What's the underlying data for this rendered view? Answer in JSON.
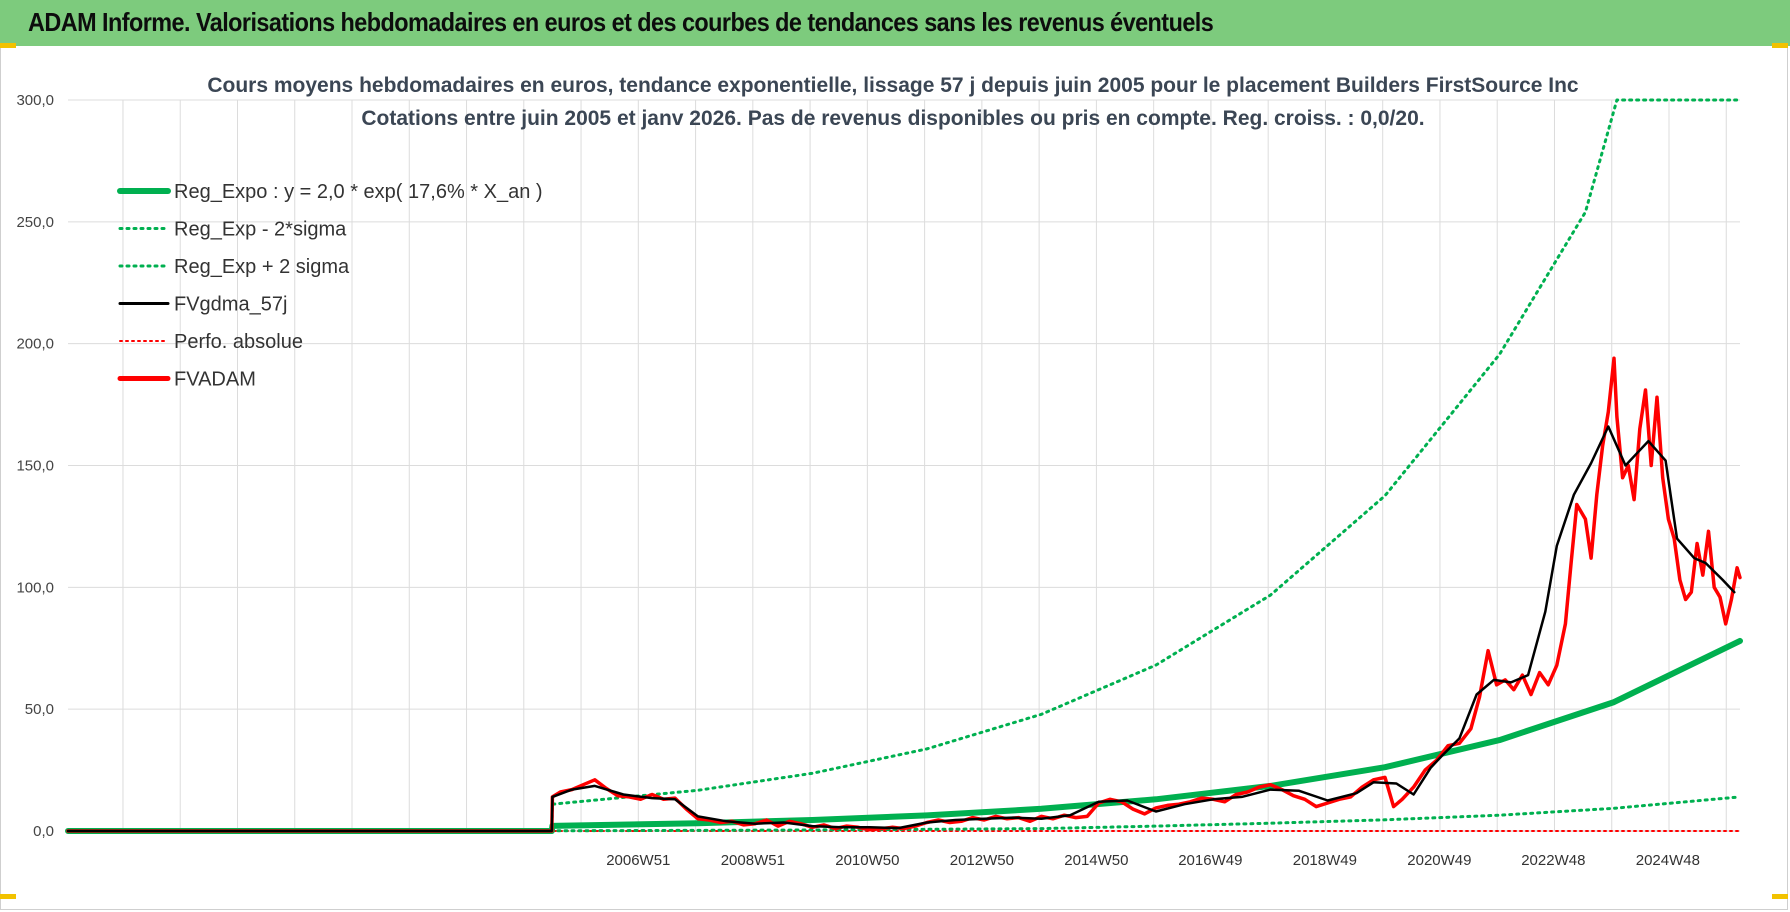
{
  "header": {
    "title": "ADAM Informe. Valorisations hebdomadaires en euros et des courbes de tendances sans les revenus éventuels",
    "bar_color": "#7dcb7d"
  },
  "chart_data": {
    "type": "line",
    "title": "Cours moyens hebdomadaires en euros, tendance exponentielle, lissage 57 j depuis juin 2005 pour le placement Builders FirstSource Inc",
    "subtitle": "Cotations entre juin 2005 et janv 2026.  Pas de revenus disponibles ou pris en compte. Reg. croiss. : 0,0/20.",
    "xlabel": "",
    "ylabel": "",
    "ylim": [
      0,
      300
    ],
    "xlim": [
      1997.0,
      2026.2
    ],
    "grid": true,
    "y_ticks": [
      "0,0",
      "50,0",
      "100,0",
      "150,0",
      "200,0",
      "250,0",
      "300,0"
    ],
    "y_tick_values": [
      0,
      50,
      100,
      150,
      200,
      250,
      300
    ],
    "x_ticks": [
      "2006W51",
      "2008W51",
      "2010W50",
      "2012W50",
      "2014W50",
      "2016W49",
      "2018W49",
      "2020W49",
      "2022W48",
      "2024W48"
    ],
    "x_tick_values": [
      2006.96,
      2008.96,
      2010.96,
      2012.96,
      2014.96,
      2016.95,
      2018.95,
      2020.95,
      2022.94,
      2024.94
    ],
    "legend_position": "top-left",
    "legend": [
      {
        "key": "reg_expo",
        "label": "Reg_Expo : y = 2,0 * exp( 17,6% *  X_an )",
        "color": "#00b050",
        "style": "solid-thick"
      },
      {
        "key": "reg_minus",
        "label": "Reg_Exp - 2*sigma",
        "color": "#00b050",
        "style": "dotted"
      },
      {
        "key": "reg_plus",
        "label": "Reg_Exp + 2 sigma",
        "color": "#00b050",
        "style": "dotted"
      },
      {
        "key": "fvgdma",
        "label": "FVgdma_57j",
        "color": "#000000",
        "style": "solid"
      },
      {
        "key": "perfo",
        "label": "Perfo. absolue",
        "color": "#ff0000",
        "style": "dotted"
      },
      {
        "key": "fvadam",
        "label": "FVADAM",
        "color": "#ff0000",
        "style": "solid-thick"
      }
    ],
    "series": [
      {
        "name": "Reg_Expo",
        "x": [
          1997.0,
          2005.45,
          2005.46,
          2008.0,
          2010.0,
          2012.0,
          2014.0,
          2016.0,
          2018.0,
          2020.0,
          2022.0,
          2024.0,
          2026.2
        ],
        "values": [
          0,
          0,
          2.1,
          3.2,
          4.5,
          6.4,
          9.1,
          13.0,
          18.5,
          26.2,
          37.3,
          52.9,
          78.0
        ]
      },
      {
        "name": "Reg_Exp - 2*sigma",
        "x": [
          1997.0,
          2005.45,
          2005.46,
          2010.0,
          2014.0,
          2016.0,
          2018.0,
          2020.0,
          2022.0,
          2024.0,
          2026.2
        ],
        "values": [
          0,
          0,
          0.1,
          0.4,
          1.0,
          2.0,
          3.2,
          4.6,
          6.5,
          9.3,
          14.0
        ]
      },
      {
        "name": "Reg_Exp + 2 sigma",
        "x": [
          1997.0,
          2005.45,
          2005.46,
          2008.0,
          2010.0,
          2012.0,
          2014.0,
          2016.0,
          2018.0,
          2020.0,
          2022.0,
          2023.5,
          2024.05,
          2026.2
        ],
        "values": [
          0,
          0,
          11.0,
          16.7,
          23.7,
          33.7,
          47.9,
          68.1,
          96.8,
          137.6,
          195.6,
          254.0,
          300.0,
          300.0
        ]
      },
      {
        "name": "FVgdma_57j",
        "x": [
          1997.0,
          2005.45,
          2005.46,
          2005.8,
          2006.2,
          2006.7,
          2007.2,
          2007.6,
          2008.0,
          2008.5,
          2009.0,
          2009.5,
          2010.0,
          2010.5,
          2011.0,
          2011.5,
          2012.0,
          2012.5,
          2013.0,
          2013.5,
          2014.0,
          2014.5,
          2015.0,
          2015.5,
          2016.0,
          2016.5,
          2017.0,
          2017.5,
          2018.0,
          2018.5,
          2019.0,
          2019.5,
          2019.8,
          2020.2,
          2020.5,
          2020.8,
          2021.0,
          2021.3,
          2021.6,
          2021.9,
          2022.2,
          2022.5,
          2022.8,
          2023.0,
          2023.3,
          2023.6,
          2023.9,
          2024.2,
          2024.4,
          2024.6,
          2024.9,
          2025.1,
          2025.4,
          2025.6,
          2025.9,
          2026.1
        ],
        "values": [
          0,
          0,
          14.0,
          17.0,
          18.5,
          15.0,
          13.5,
          13.0,
          6.0,
          4.0,
          3.0,
          3.5,
          2.0,
          1.5,
          1.5,
          1.2,
          3.5,
          4.5,
          5.0,
          5.5,
          5.0,
          6.5,
          12.0,
          12.5,
          8.0,
          11.0,
          13.0,
          14.0,
          17.0,
          16.5,
          12.5,
          15.5,
          20.0,
          19.5,
          15.0,
          26.0,
          31.0,
          38.0,
          56.0,
          62.0,
          61.0,
          64.0,
          90.0,
          117.0,
          138.0,
          151.0,
          166.0,
          150.0,
          155.0,
          160.0,
          152.0,
          120.0,
          112.0,
          110.0,
          103.0,
          98.0
        ]
      },
      {
        "name": "Perfo. absolue",
        "x": [
          1997.0,
          2026.2
        ],
        "values": [
          0,
          0
        ]
      },
      {
        "name": "FVADAM",
        "x": [
          1997.0,
          2005.45,
          2005.46,
          2005.6,
          2005.8,
          2006.0,
          2006.2,
          2006.4,
          2006.6,
          2006.8,
          2007.0,
          2007.2,
          2007.4,
          2007.6,
          2007.8,
          2008.0,
          2008.2,
          2008.4,
          2008.6,
          2008.8,
          2009.0,
          2009.2,
          2009.4,
          2009.6,
          2009.8,
          2010.0,
          2010.2,
          2010.4,
          2010.6,
          2010.8,
          2011.0,
          2011.2,
          2011.4,
          2011.6,
          2011.8,
          2012.0,
          2012.2,
          2012.4,
          2012.6,
          2012.8,
          2013.0,
          2013.2,
          2013.4,
          2013.6,
          2013.8,
          2014.0,
          2014.2,
          2014.4,
          2014.6,
          2014.8,
          2015.0,
          2015.2,
          2015.4,
          2015.6,
          2015.8,
          2016.0,
          2016.2,
          2016.4,
          2016.6,
          2016.8,
          2017.0,
          2017.2,
          2017.4,
          2017.6,
          2017.8,
          2018.0,
          2018.2,
          2018.4,
          2018.6,
          2018.8,
          2019.0,
          2019.2,
          2019.4,
          2019.6,
          2019.8,
          2020.0,
          2020.15,
          2020.3,
          2020.5,
          2020.7,
          2020.9,
          2021.1,
          2021.3,
          2021.5,
          2021.65,
          2021.8,
          2021.95,
          2022.1,
          2022.25,
          2022.4,
          2022.55,
          2022.7,
          2022.85,
          2023.0,
          2023.15,
          2023.25,
          2023.35,
          2023.5,
          2023.6,
          2023.7,
          2023.8,
          2023.9,
          2024.0,
          2024.05,
          2024.15,
          2024.25,
          2024.35,
          2024.45,
          2024.55,
          2024.65,
          2024.75,
          2024.85,
          2024.95,
          2025.05,
          2025.15,
          2025.25,
          2025.35,
          2025.45,
          2025.55,
          2025.65,
          2025.75,
          2025.85,
          2025.95,
          2026.05,
          2026.15,
          2026.2
        ],
        "values": [
          0,
          0,
          14.0,
          16.0,
          17.0,
          19.0,
          21.0,
          17.5,
          14.5,
          14.0,
          13.0,
          15.0,
          13.0,
          13.5,
          9.0,
          5.0,
          4.5,
          3.5,
          4.0,
          2.5,
          3.0,
          4.5,
          2.0,
          4.0,
          3.0,
          1.5,
          2.5,
          1.0,
          2.0,
          1.5,
          0.5,
          1.0,
          1.5,
          1.0,
          2.0,
          3.5,
          4.5,
          3.5,
          4.0,
          5.5,
          4.5,
          6.0,
          5.0,
          5.5,
          4.0,
          6.0,
          5.0,
          6.5,
          5.5,
          6.0,
          11.5,
          13.0,
          12.0,
          9.0,
          7.0,
          9.5,
          10.5,
          11.0,
          12.0,
          13.5,
          13.0,
          12.0,
          15.0,
          16.0,
          18.0,
          19.0,
          17.0,
          14.5,
          13.0,
          10.0,
          11.5,
          13.0,
          14.0,
          18.0,
          21.0,
          22.0,
          10.0,
          13.0,
          18.0,
          25.0,
          29.0,
          35.0,
          36.0,
          42.0,
          55.0,
          74.0,
          60.0,
          62.0,
          58.0,
          64.0,
          56.0,
          65.0,
          60.0,
          68.0,
          85.0,
          110.0,
          134.0,
          128.0,
          112.0,
          138.0,
          158.0,
          172.0,
          194.0,
          170.0,
          145.0,
          150.0,
          136.0,
          165.0,
          181.0,
          150.0,
          178.0,
          145.0,
          128.0,
          120.0,
          103.0,
          95.0,
          98.0,
          118.0,
          105.0,
          123.0,
          100.0,
          96.0,
          85.0,
          95.0,
          108.0,
          104.0
        ]
      }
    ]
  }
}
